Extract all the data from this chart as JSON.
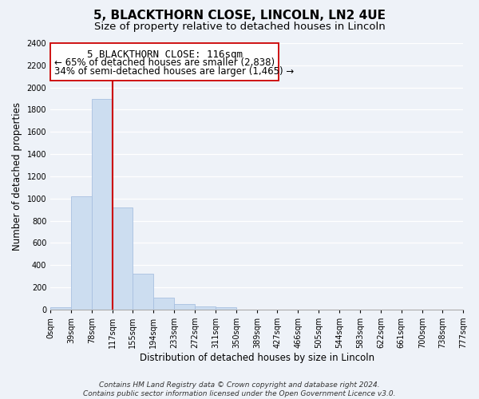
{
  "title": "5, BLACKTHORN CLOSE, LINCOLN, LN2 4UE",
  "subtitle": "Size of property relative to detached houses in Lincoln",
  "xlabel": "Distribution of detached houses by size in Lincoln",
  "ylabel": "Number of detached properties",
  "bar_color": "#ccddf0",
  "bar_edge_color": "#a8c0e0",
  "bin_edges": [
    0,
    39,
    78,
    117,
    155,
    194,
    233,
    272,
    311,
    350,
    389,
    427,
    466,
    505,
    544,
    583,
    622,
    661,
    700,
    738,
    777
  ],
  "bar_heights": [
    20,
    1020,
    1900,
    920,
    320,
    110,
    50,
    28,
    18,
    0,
    0,
    0,
    0,
    0,
    0,
    0,
    0,
    0,
    0,
    0
  ],
  "tick_labels": [
    "0sqm",
    "39sqm",
    "78sqm",
    "117sqm",
    "155sqm",
    "194sqm",
    "233sqm",
    "272sqm",
    "311sqm",
    "350sqm",
    "389sqm",
    "427sqm",
    "466sqm",
    "505sqm",
    "544sqm",
    "583sqm",
    "622sqm",
    "661sqm",
    "700sqm",
    "738sqm",
    "777sqm"
  ],
  "ylim": [
    0,
    2400
  ],
  "yticks": [
    0,
    200,
    400,
    600,
    800,
    1000,
    1200,
    1400,
    1600,
    1800,
    2000,
    2200,
    2400
  ],
  "xlim_max": 777,
  "property_line_x": 117,
  "annotation_title": "5 BLACKTHORN CLOSE: 116sqm",
  "annotation_line1": "← 65% of detached houses are smaller (2,838)",
  "annotation_line2": "34% of semi-detached houses are larger (1,465) →",
  "footer_line1": "Contains HM Land Registry data © Crown copyright and database right 2024.",
  "footer_line2": "Contains public sector information licensed under the Open Government Licence v3.0.",
  "background_color": "#eef2f8",
  "grid_color": "#ffffff",
  "title_fontsize": 11,
  "subtitle_fontsize": 9.5,
  "axis_label_fontsize": 8.5,
  "tick_fontsize": 7,
  "annotation_title_fontsize": 9,
  "annotation_body_fontsize": 8.5,
  "footer_fontsize": 6.5
}
